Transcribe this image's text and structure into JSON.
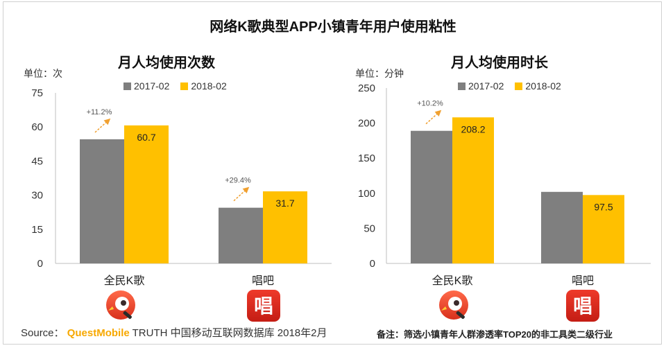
{
  "page": {
    "title": "网络K歌典型APP小镇青年用户使用粘性",
    "source_prefix": "Source：",
    "source_brand": "QuestMobile",
    "source_rest": "TRUTH 中国移动互联网数据库 2018年2月",
    "note": "备注：筛选小镇青年人群渗透率TOP20的非工具类二级行业"
  },
  "colors": {
    "series_2017": "#7f7f7f",
    "series_2018": "#ffc000",
    "arrow": "#f0a030",
    "icon_kge": "#e8442d",
    "icon_changba": "#d9261c"
  },
  "icons": [
    "qmkg-app-icon",
    "changba-app-icon"
  ],
  "chart_data": [
    {
      "type": "bar",
      "title": "月人均使用次数",
      "unit_label": "单位：次",
      "categories": [
        "全民K歌",
        "唱吧"
      ],
      "series": [
        {
          "name": "2017-02",
          "values": [
            54.6,
            24.5
          ]
        },
        {
          "name": "2018-02",
          "values": [
            60.7,
            31.7
          ]
        }
      ],
      "data_labels": [
        "60.7",
        "31.7"
      ],
      "growth_labels": [
        "+11.2%",
        "+29.4%"
      ],
      "ylim": [
        0,
        75
      ],
      "yticks": [
        "0",
        "15",
        "30",
        "45",
        "60",
        "75"
      ],
      "legend": "top-center",
      "grid": false
    },
    {
      "type": "bar",
      "title": "月人均使用时长",
      "unit_label": "单位：分钟",
      "categories": [
        "全民K歌",
        "唱吧"
      ],
      "series": [
        {
          "name": "2017-02",
          "values": [
            189,
            102
          ]
        },
        {
          "name": "2018-02",
          "values": [
            208.2,
            97.5
          ]
        }
      ],
      "data_labels": [
        "208.2",
        "97.5"
      ],
      "growth_labels": [
        "+10.2%",
        ""
      ],
      "ylim": [
        0,
        250
      ],
      "yticks": [
        "0",
        "50",
        "100",
        "150",
        "200",
        "250"
      ],
      "legend": "top-center",
      "grid": false
    }
  ]
}
